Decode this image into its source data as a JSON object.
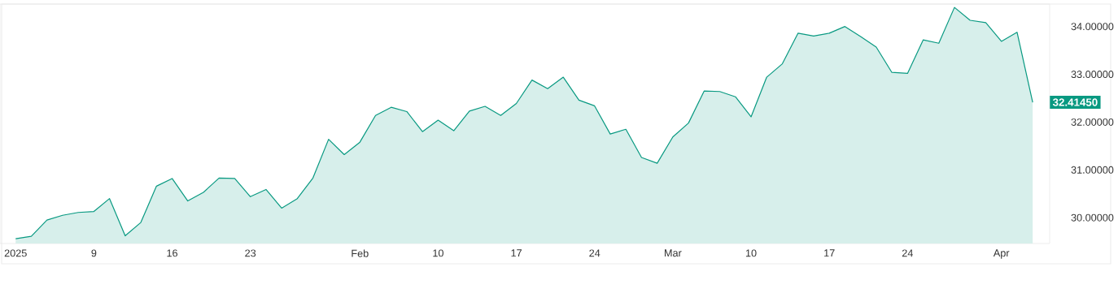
{
  "chart_data": {
    "type": "area",
    "categories": [
      "2025",
      null,
      null,
      null,
      null,
      "9",
      null,
      null,
      null,
      null,
      "16",
      null,
      null,
      null,
      null,
      "23",
      null,
      null,
      null,
      null,
      null,
      null,
      "Feb",
      null,
      null,
      null,
      null,
      "10",
      null,
      null,
      null,
      null,
      "17",
      null,
      null,
      null,
      null,
      "24",
      null,
      null,
      null,
      null,
      "Mar",
      null,
      null,
      null,
      null,
      "10",
      null,
      null,
      null,
      null,
      "17",
      null,
      null,
      null,
      null,
      "24",
      null,
      null,
      null,
      null,
      null,
      "Apr",
      null,
      null
    ],
    "values": [
      29.56,
      29.61,
      29.95,
      30.05,
      30.11,
      30.13,
      30.4,
      29.62,
      29.9,
      30.66,
      30.82,
      30.35,
      30.53,
      30.83,
      30.82,
      30.44,
      30.59,
      30.2,
      30.4,
      30.83,
      31.64,
      31.32,
      31.58,
      32.14,
      32.31,
      32.22,
      31.8,
      32.04,
      31.82,
      32.23,
      32.33,
      32.14,
      32.39,
      32.88,
      32.7,
      32.94,
      32.46,
      32.34,
      31.75,
      31.85,
      31.26,
      31.14,
      31.69,
      31.98,
      32.65,
      32.64,
      32.53,
      32.11,
      32.94,
      33.22,
      33.86,
      33.8,
      33.86,
      34.0,
      33.79,
      33.57,
      33.04,
      33.02,
      33.72,
      33.65,
      34.4,
      34.13,
      34.08,
      33.69,
      33.88,
      32.4145
    ],
    "color": "#089981",
    "ylim": [
      29.46,
      34.47
    ],
    "yticks": [
      {
        "value": 30,
        "label": "30.00000"
      },
      {
        "value": 31,
        "label": "31.00000"
      },
      {
        "value": 32,
        "label": "32.00000"
      },
      {
        "value": 33,
        "label": "33.00000"
      },
      {
        "value": 34,
        "label": "34.00000"
      }
    ],
    "annotations": [
      "32.41450"
    ]
  }
}
